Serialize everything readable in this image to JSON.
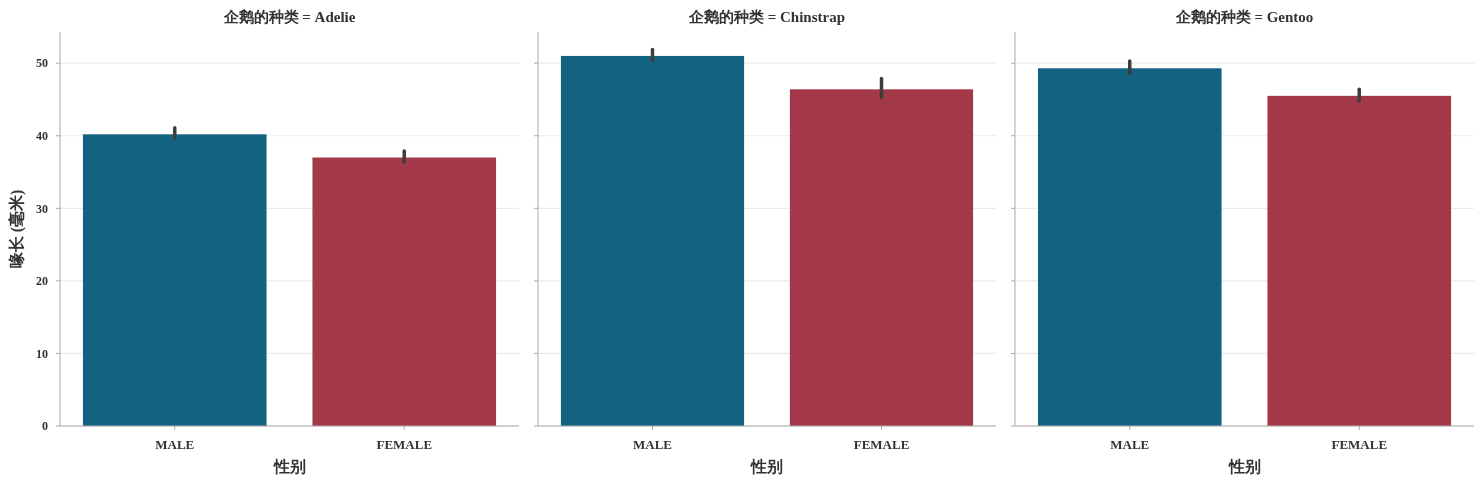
{
  "chart_data": [
    {
      "type": "bar",
      "title": "企鹅的种类 = Adelie",
      "xlabel": "性别",
      "ylabel": "喙长 (毫米)",
      "categories": [
        "MALE",
        "FEMALE"
      ],
      "values": [
        40.2,
        37.0
      ],
      "colors": [
        "#136280",
        "#a23848"
      ],
      "errors": [
        [
          39.7,
          41.1
        ],
        [
          36.4,
          37.9
        ]
      ],
      "ylim": [
        0,
        54.3
      ],
      "yticks": [
        0,
        10,
        20,
        30,
        40,
        50
      ],
      "grid": "y"
    },
    {
      "type": "bar",
      "title": "企鹅的种类 = Chinstrap",
      "xlabel": "性别",
      "categories": [
        "MALE",
        "FEMALE"
      ],
      "values": [
        51.0,
        46.4
      ],
      "colors": [
        "#136280",
        "#a23848"
      ],
      "errors": [
        [
          50.4,
          51.9
        ],
        [
          45.3,
          47.9
        ]
      ],
      "ylim": [
        0,
        54.3
      ],
      "yticks": [
        0,
        10,
        20,
        30,
        40,
        50
      ],
      "grid": "y",
      "tick_labels": "x"
    },
    {
      "type": "bar",
      "title": "企鹅的种类 = Gentoo",
      "xlabel": "性别",
      "categories": [
        "MALE",
        "FEMALE"
      ],
      "values": [
        49.3,
        45.5
      ],
      "colors": [
        "#136280",
        "#a23848"
      ],
      "errors": [
        [
          48.6,
          50.3
        ],
        [
          44.8,
          46.4
        ]
      ],
      "ylim": [
        0,
        54.3
      ],
      "yticks": [
        0,
        10,
        20,
        30,
        40,
        50
      ],
      "grid": "y",
      "tick_labels": "x"
    }
  ]
}
